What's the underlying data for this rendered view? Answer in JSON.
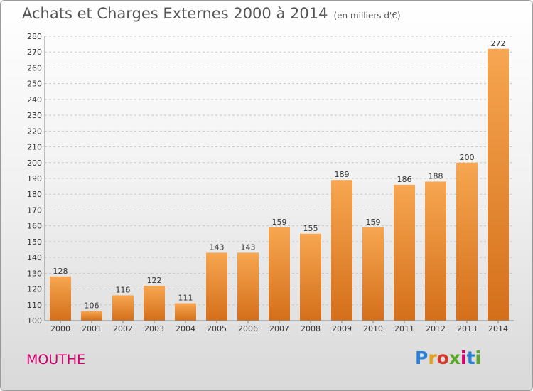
{
  "header": {
    "title": "Achats et Charges Externes 2000 à 2014",
    "subtitle": "(en milliers d'€)"
  },
  "footer": {
    "town": "MOUTHE",
    "logo_letters": [
      "P",
      "r",
      "o",
      "x",
      "i",
      "t",
      "i"
    ]
  },
  "colors": {
    "bar_light": "#f7a651",
    "bar_dark": "#d46f1a",
    "town": "#d0006f",
    "grid": "#cccccc"
  },
  "chart_data": {
    "type": "bar",
    "title": "Achats et Charges Externes 2000 à 2014",
    "subtitle": "(en milliers d'€)",
    "categories": [
      "2000",
      "2001",
      "2002",
      "2003",
      "2004",
      "2005",
      "2006",
      "2007",
      "2008",
      "2009",
      "2010",
      "2011",
      "2012",
      "2013",
      "2014"
    ],
    "values": [
      128,
      106,
      116,
      122,
      111,
      143,
      143,
      159,
      155,
      189,
      159,
      186,
      188,
      200,
      272
    ],
    "ylim": [
      100,
      280
    ],
    "yticks": [
      100,
      110,
      120,
      130,
      140,
      150,
      160,
      170,
      180,
      190,
      200,
      210,
      220,
      230,
      240,
      250,
      260,
      270,
      280
    ],
    "grid": "horizontal-dashed",
    "legend": "none"
  }
}
